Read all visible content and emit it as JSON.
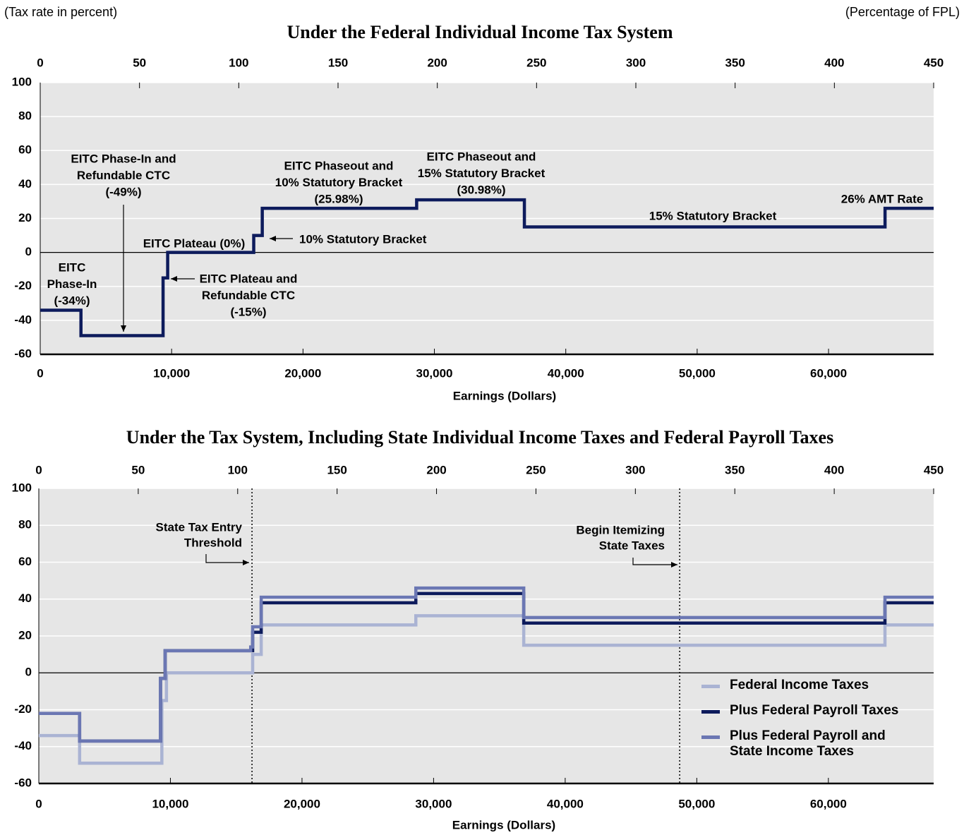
{
  "chart_data": [
    {
      "type": "line",
      "title": "Under the Federal Individual Income Tax System",
      "ylabel": "(Tax rate in percent)",
      "x2label": "(Percentage of FPL)",
      "xlabel": "Earnings (Dollars)",
      "xlim": [
        0,
        68000
      ],
      "xticks": [
        0,
        {
          "value": 10000,
          "label": "10,000"
        },
        {
          "value": 20000,
          "label": "20,000"
        },
        {
          "value": 30000,
          "label": "30,000"
        },
        {
          "value": 40000,
          "label": "40,000"
        },
        {
          "value": 50000,
          "label": "50,000"
        },
        {
          "value": 60000,
          "label": "60,000"
        }
      ],
      "x2lim": [
        0,
        450
      ],
      "x2ticks": [
        0,
        50,
        100,
        150,
        200,
        250,
        300,
        350,
        400,
        450
      ],
      "ylim": [
        -60,
        100
      ],
      "yticks": [
        -60,
        -40,
        -20,
        0,
        20,
        40,
        60,
        80,
        100
      ],
      "grid": true,
      "color": "#0d1b5c",
      "x": [
        0,
        3100,
        3100,
        9350,
        9350,
        9700,
        9700,
        16250,
        16250,
        16900,
        16900,
        28650,
        28650,
        36850,
        36850,
        64300,
        64300,
        68000
      ],
      "values": [
        -34,
        -34,
        -49,
        -49,
        -15,
        -15,
        0,
        0,
        10,
        10,
        25.98,
        25.98,
        30.98,
        30.98,
        15,
        15,
        26,
        26
      ],
      "annotations": [
        {
          "lines": [
            "EITC",
            "Phase-In",
            "(-34%)"
          ]
        },
        {
          "lines": [
            "EITC Phase-In and",
            "Refundable CTC",
            "(-49%)"
          ]
        },
        {
          "lines": [
            "EITC Plateau (0%)"
          ]
        },
        {
          "lines": [
            "EITC Plateau and",
            "Refundable CTC",
            "(-15%)"
          ]
        },
        {
          "lines": [
            "EITC Phaseout and",
            "10% Statutory Bracket",
            "(25.98%)"
          ]
        },
        {
          "lines": [
            "10% Statutory Bracket"
          ]
        },
        {
          "lines": [
            "EITC Phaseout and",
            "15% Statutory Bracket",
            "(30.98%)"
          ]
        },
        {
          "lines": [
            "15% Statutory Bracket"
          ]
        },
        {
          "lines": [
            "26% AMT Rate"
          ]
        }
      ]
    },
    {
      "type": "line",
      "title": "Under the Tax System, Including State Individual Income Taxes and Federal Payroll Taxes",
      "xlabel": "Earnings (Dollars)",
      "xlim": [
        0,
        68000
      ],
      "xticks": [
        0,
        {
          "value": 10000,
          "label": "10,000"
        },
        {
          "value": 20000,
          "label": "20,000"
        },
        {
          "value": 30000,
          "label": "30,000"
        },
        {
          "value": 40000,
          "label": "40,000"
        },
        {
          "value": 50000,
          "label": "50,000"
        },
        {
          "value": 60000,
          "label": "60,000"
        }
      ],
      "x2lim": [
        0,
        450
      ],
      "x2ticks": [
        0,
        50,
        100,
        150,
        200,
        250,
        300,
        350,
        400,
        450
      ],
      "ylim": [
        -60,
        100
      ],
      "yticks": [
        -60,
        -40,
        -20,
        0,
        20,
        40,
        60,
        80,
        100
      ],
      "grid": true,
      "legend": "lower right",
      "series": [
        {
          "name": "Federal Income Taxes",
          "color": "#aab3d3",
          "x": [
            0,
            3100,
            3100,
            9350,
            9350,
            9700,
            9700,
            16250,
            16250,
            16900,
            16900,
            28650,
            28650,
            36850,
            36850,
            64300,
            64300,
            68000
          ],
          "values": [
            -34,
            -34,
            -49,
            -49,
            -15,
            -15,
            0,
            0,
            10,
            10,
            25.98,
            25.98,
            30.98,
            30.98,
            15,
            15,
            26,
            26
          ]
        },
        {
          "name": "Plus Federal Payroll Taxes",
          "color": "#0d1b5c",
          "x": [
            0,
            3100,
            3100,
            9250,
            9250,
            9600,
            9600,
            16250,
            16250,
            16900,
            16900,
            28650,
            28650,
            36850,
            36850,
            64300,
            64300,
            68000
          ],
          "values": [
            -22,
            -22,
            -37,
            -37,
            -3,
            -3,
            12,
            12,
            22,
            22,
            38,
            38,
            43,
            43,
            27,
            27,
            38,
            38
          ]
        },
        {
          "name": "Plus Federal Payroll and State Income Taxes",
          "color": "#6b77b3",
          "x": [
            0,
            3100,
            3100,
            9250,
            9250,
            9600,
            9600,
            16100,
            16100,
            16250,
            16250,
            16900,
            16900,
            28650,
            28650,
            36850,
            36850,
            64300,
            64300,
            68000
          ],
          "values": [
            -22,
            -22,
            -37,
            -37,
            -3,
            -3,
            12,
            12,
            14,
            14,
            25,
            25,
            41,
            41,
            46,
            46,
            30,
            30,
            41,
            41
          ]
        }
      ],
      "ref_lines": [
        {
          "x": 16200,
          "lines": [
            "State Tax Entry",
            "Threshold"
          ]
        },
        {
          "x": 48700,
          "lines": [
            "Begin Itemizing",
            "State Taxes"
          ]
        }
      ]
    }
  ]
}
